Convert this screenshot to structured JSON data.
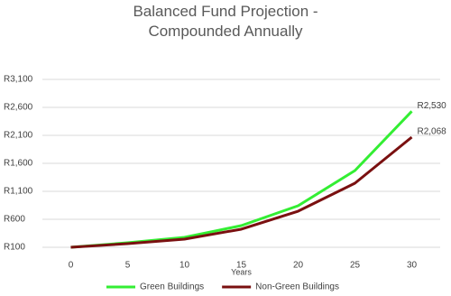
{
  "chart_data": {
    "type": "line",
    "title": "Balanced Fund Projection - Compounded Annually",
    "x_label": "Years",
    "categories": [
      "0",
      "5",
      "10",
      "15",
      "20",
      "25",
      "30"
    ],
    "series": [
      {
        "name": "Green Buildings",
        "color": "#33ee33",
        "values": [
          100,
          180,
          277,
          487,
          842,
          1471,
          2530
        ],
        "value_labels": [
          null,
          null,
          null,
          null,
          null,
          null,
          "R2,530"
        ]
      },
      {
        "name": "Non-Green Buildings",
        "color": "#7a1010",
        "values": [
          100,
          165,
          245,
          423,
          745,
          1245,
          2068
        ],
        "value_labels": [
          null,
          null,
          null,
          null,
          null,
          null,
          "R2,068"
        ]
      }
    ],
    "ylim": [
      100,
      3100
    ],
    "yticks": [
      {
        "value": 100,
        "label": "R100"
      },
      {
        "value": 600,
        "label": "R600"
      },
      {
        "value": 1100,
        "label": "R1,100"
      },
      {
        "value": 1600,
        "label": "R1,600"
      },
      {
        "value": 2100,
        "label": "R2,100"
      },
      {
        "value": 2600,
        "label": "R2,600"
      },
      {
        "value": 3100,
        "label": "R3,100"
      }
    ],
    "grid": true,
    "legend": "bottom"
  }
}
